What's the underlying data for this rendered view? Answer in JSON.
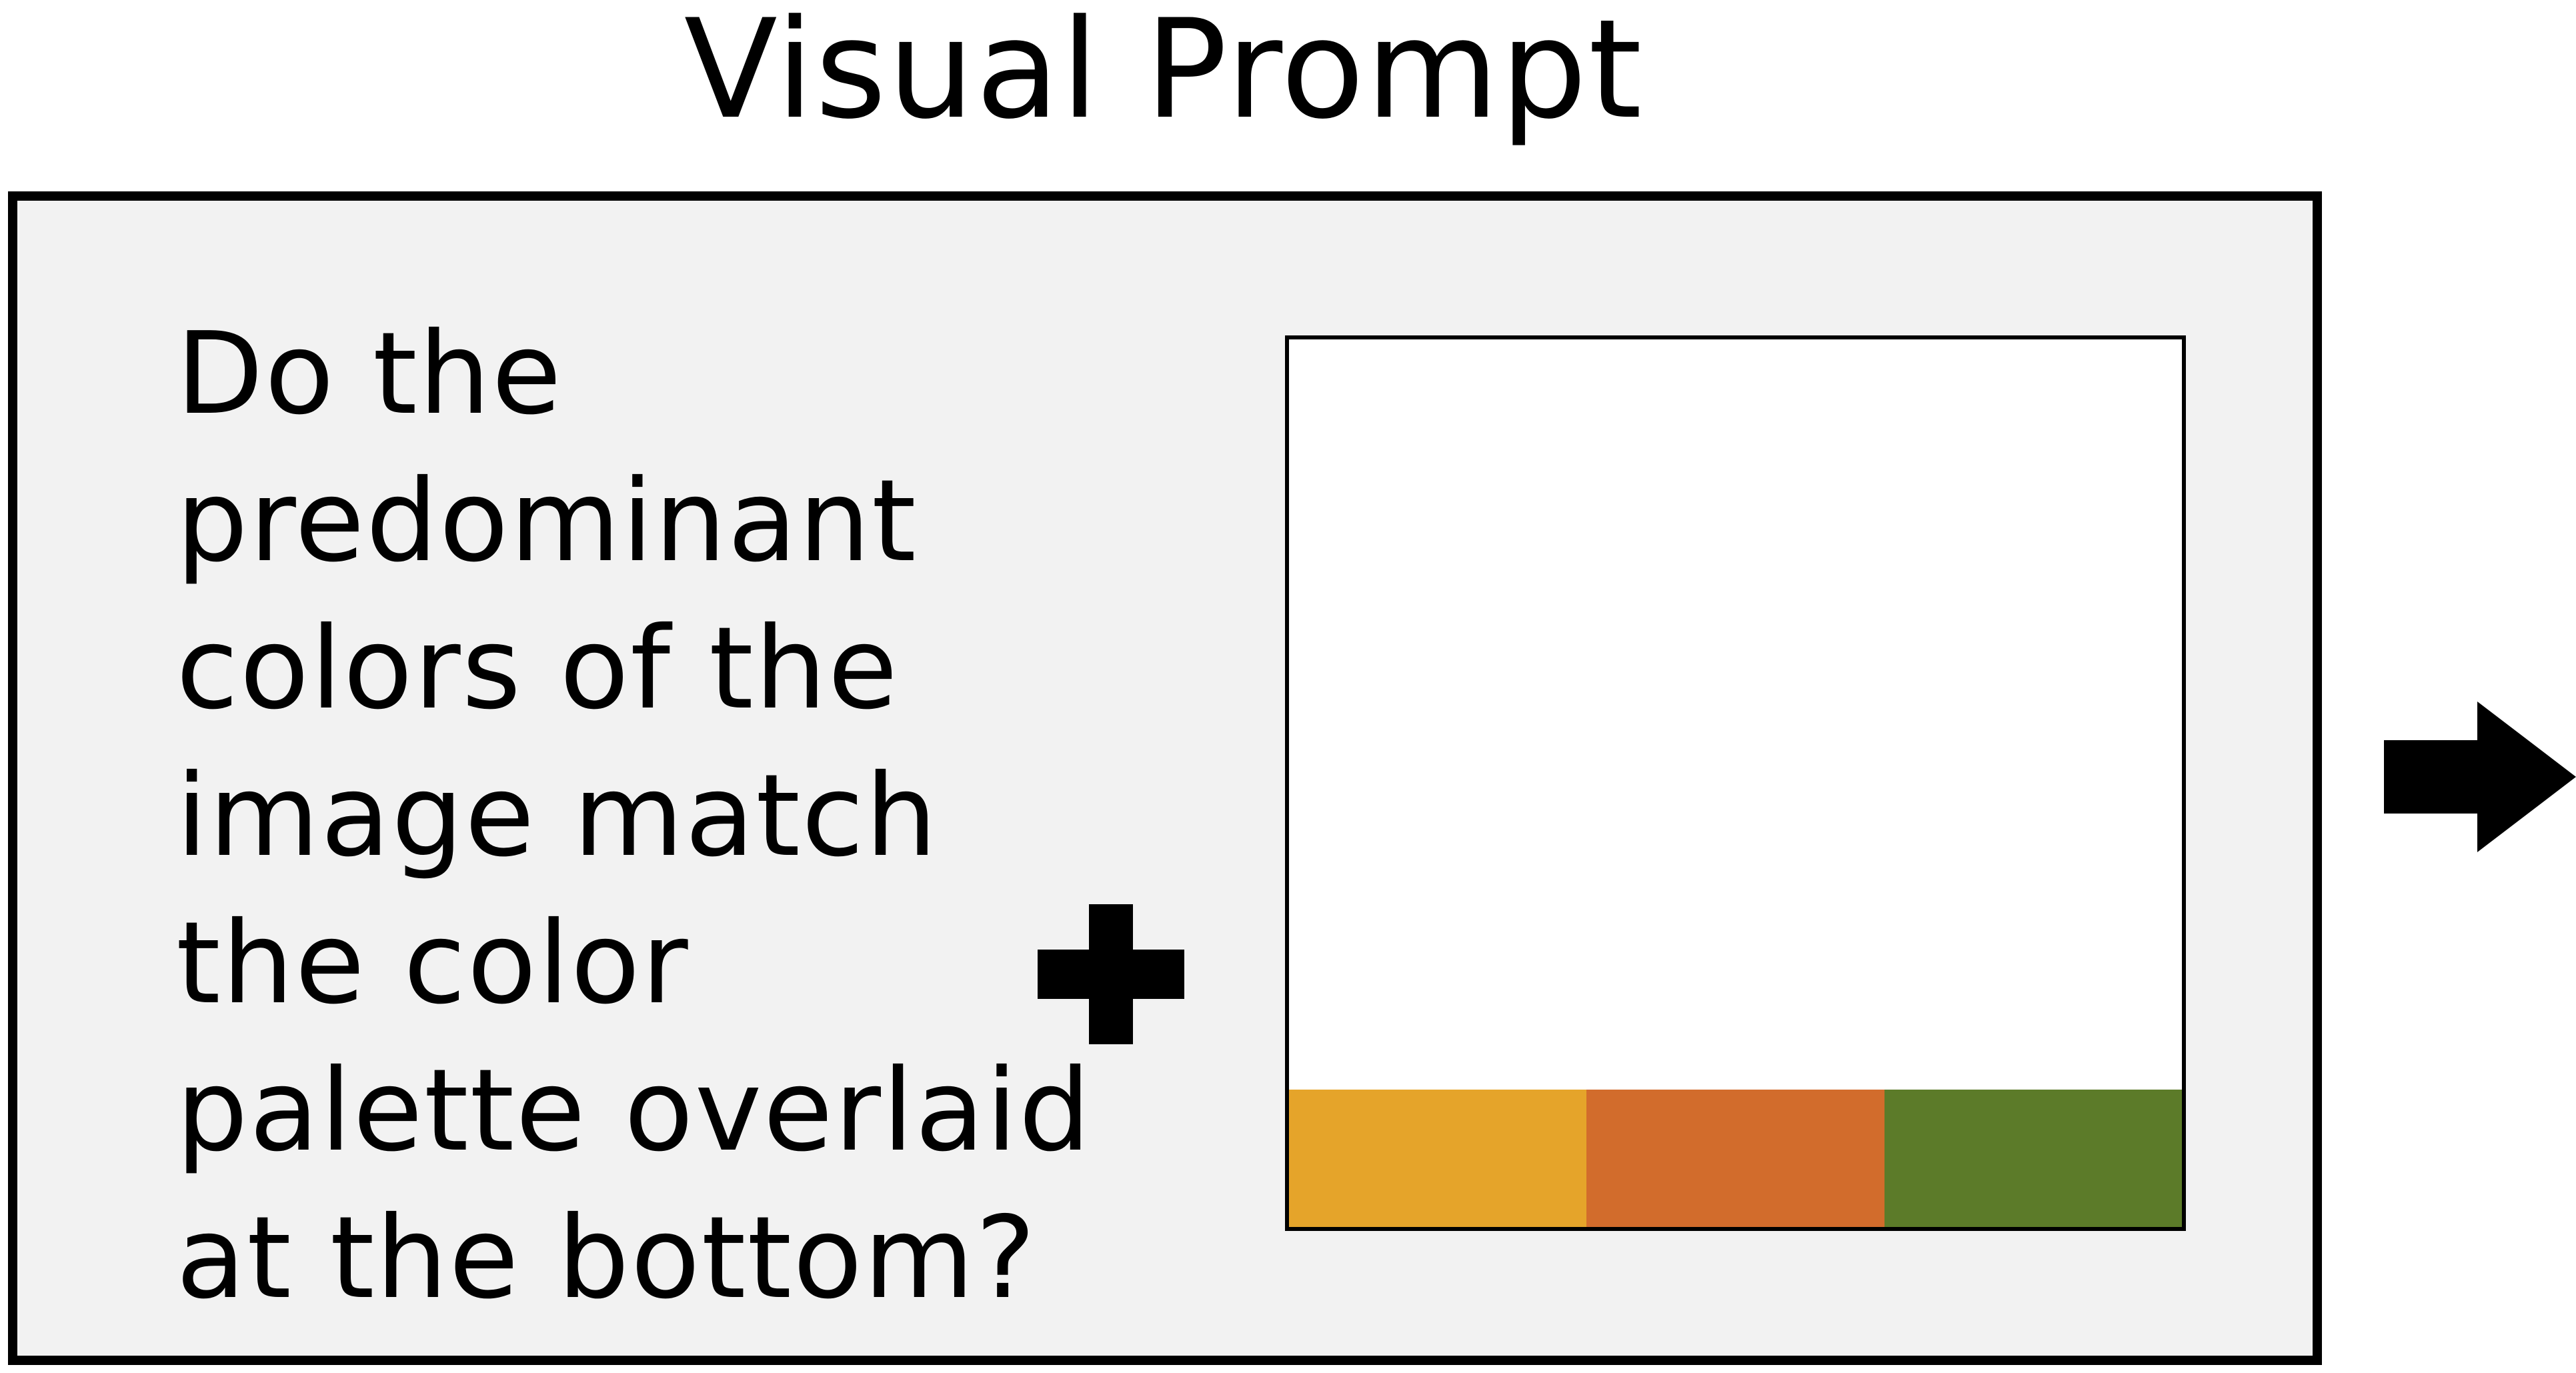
{
  "title": "Visual Prompt",
  "question": {
    "lines": [
      "Do the",
      "predominant",
      "colors of the",
      "image match",
      "the color",
      "palette overlaid",
      "at the bottom?"
    ]
  },
  "icons": {
    "combine": "plus-icon",
    "next": "arrow-right-icon"
  },
  "palette": {
    "swatches": [
      {
        "color": "#e5a42a"
      },
      {
        "color": "#d26c2c"
      },
      {
        "color": "#5c7b29"
      }
    ]
  },
  "colors": {
    "panel_background": "#f2f2f2",
    "border": "#000000",
    "image_background": "#ffffff"
  }
}
